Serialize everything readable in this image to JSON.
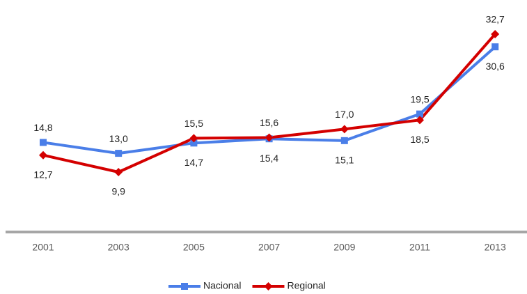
{
  "chart_data": {
    "type": "line",
    "categories": [
      "2001",
      "2003",
      "2005",
      "2007",
      "2009",
      "2011",
      "2013"
    ],
    "series": [
      {
        "name": "Nacional",
        "color": "#4a7ee8",
        "marker": "square",
        "values": [
          14.8,
          13.0,
          14.7,
          15.4,
          15.1,
          19.5,
          30.6
        ],
        "value_labels": [
          "14,8",
          "13,0",
          "14,7",
          "15,4",
          "15,1",
          "19,5",
          "30,6"
        ]
      },
      {
        "name": "Regional",
        "color": "#d40000",
        "marker": "diamond",
        "values": [
          12.7,
          9.9,
          15.5,
          15.6,
          17.0,
          18.5,
          32.7
        ],
        "value_labels": [
          "12,7",
          "9,9",
          "15,5",
          "15,6",
          "17,0",
          "18,5",
          "32,7"
        ]
      }
    ],
    "ylim": [
      0,
      35
    ],
    "legend": "bottom"
  }
}
